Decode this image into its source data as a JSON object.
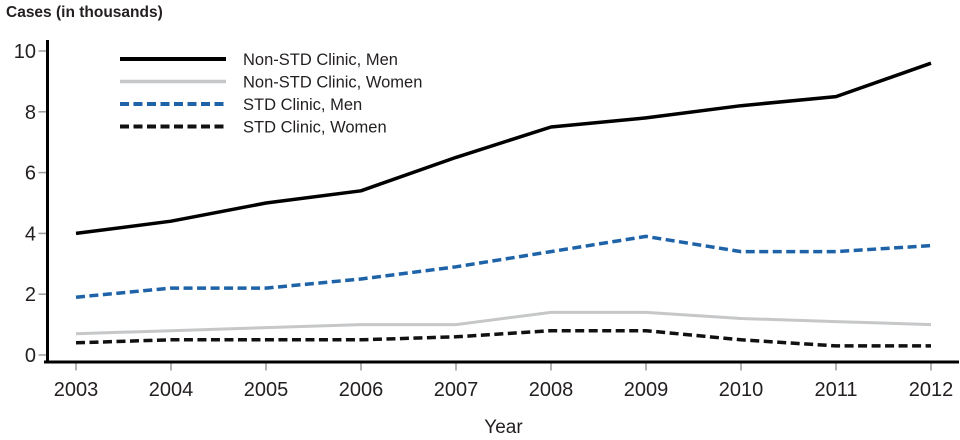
{
  "chart_data": {
    "type": "line",
    "title": "Cases (in thousands)",
    "xlabel": "Year",
    "ylabel": "Cases (in thousands)",
    "x": [
      2003,
      2004,
      2005,
      2006,
      2007,
      2008,
      2009,
      2010,
      2011,
      2012
    ],
    "x_tick_labels": [
      "2003",
      "2004",
      "2005",
      "2006",
      "2007",
      "2008",
      "2009",
      "2010",
      "2011",
      "2012"
    ],
    "y_ticks": [
      0,
      2,
      4,
      6,
      8,
      10
    ],
    "ylim": [
      0,
      10
    ],
    "grid": false,
    "legend_position": "top-left-inside",
    "series": [
      {
        "name": "Non-STD Clinic, Men",
        "style": "solid",
        "color": "#000000",
        "width": 3.5,
        "values": [
          4.0,
          4.4,
          5.0,
          5.4,
          6.5,
          7.5,
          7.8,
          8.2,
          8.5,
          9.6
        ]
      },
      {
        "name": "Non-STD Clinic, Women",
        "style": "solid",
        "color": "#c5c7c9",
        "width": 3,
        "values": [
          0.7,
          0.8,
          0.9,
          1.0,
          1.0,
          1.4,
          1.4,
          1.2,
          1.1,
          1.0
        ]
      },
      {
        "name": "STD Clinic, Men",
        "style": "dashed",
        "color": "#1e63a8",
        "width": 3.5,
        "values": [
          1.9,
          2.2,
          2.2,
          2.5,
          2.9,
          3.4,
          3.9,
          3.4,
          3.4,
          3.6
        ]
      },
      {
        "name": "STD Clinic, Women",
        "style": "dashed",
        "color": "#111111",
        "width": 3.5,
        "values": [
          0.4,
          0.5,
          0.5,
          0.5,
          0.6,
          0.8,
          0.8,
          0.5,
          0.3,
          0.3
        ]
      }
    ],
    "axis_color": "#000000",
    "tick_mark_color": "#9b9b9b",
    "text_color": "#231f20"
  }
}
